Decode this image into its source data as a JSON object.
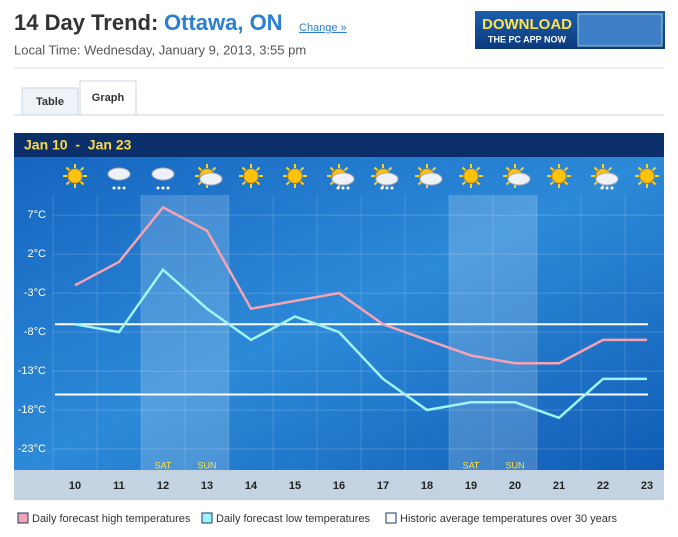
{
  "header": {
    "title": "14 Day Trend:",
    "location": "Ottawa, ON",
    "change_link": "Change »",
    "local_time": "Local Time: Wednesday, January 9, 2013, 3:55 pm"
  },
  "banner": {
    "line1": "DOWNLOAD",
    "line2": "THE PC APP NOW"
  },
  "tabs": [
    "Table",
    "Graph"
  ],
  "chart_data": {
    "type": "line",
    "title": "Jan 10  -  Jan 23",
    "categories": [
      "10",
      "11",
      "12",
      "13",
      "14",
      "15",
      "16",
      "17",
      "18",
      "19",
      "20",
      "21",
      "22",
      "23"
    ],
    "day_labels": [
      null,
      null,
      "SAT",
      "SUN",
      null,
      null,
      null,
      null,
      null,
      "SAT",
      "SUN",
      null,
      null,
      null
    ],
    "series": [
      {
        "name": "Daily forecast high temperatures",
        "color": "#f4a3b4",
        "values": [
          -2,
          1,
          8,
          5,
          -5,
          -4,
          -3,
          -7,
          -9,
          -11,
          -12,
          -12,
          -9,
          -9
        ]
      },
      {
        "name": "Daily forecast low temperatures",
        "color": "#9ef4f6",
        "values": [
          -7,
          -8,
          0,
          -5,
          -9,
          -6,
          -8,
          -14,
          -18,
          -17,
          -17,
          -19,
          -14,
          -14
        ]
      }
    ],
    "averages": {
      "name": "Historic average temperatures over 30 years",
      "color": "#ffffff",
      "values": [
        -7,
        -16
      ]
    },
    "ylim": [
      -25.5,
      11
    ],
    "yticks": [
      {
        "value": 7,
        "label": "7°C"
      },
      {
        "value": 2,
        "label": "2°C"
      },
      {
        "value": -3,
        "label": "-3°C"
      },
      {
        "value": -8,
        "label": "-8°C"
      },
      {
        "value": -13,
        "label": "-13°C"
      },
      {
        "value": -18,
        "label": "-18°C"
      },
      {
        "value": -23,
        "label": "-23°C"
      }
    ],
    "grid": true
  }
}
